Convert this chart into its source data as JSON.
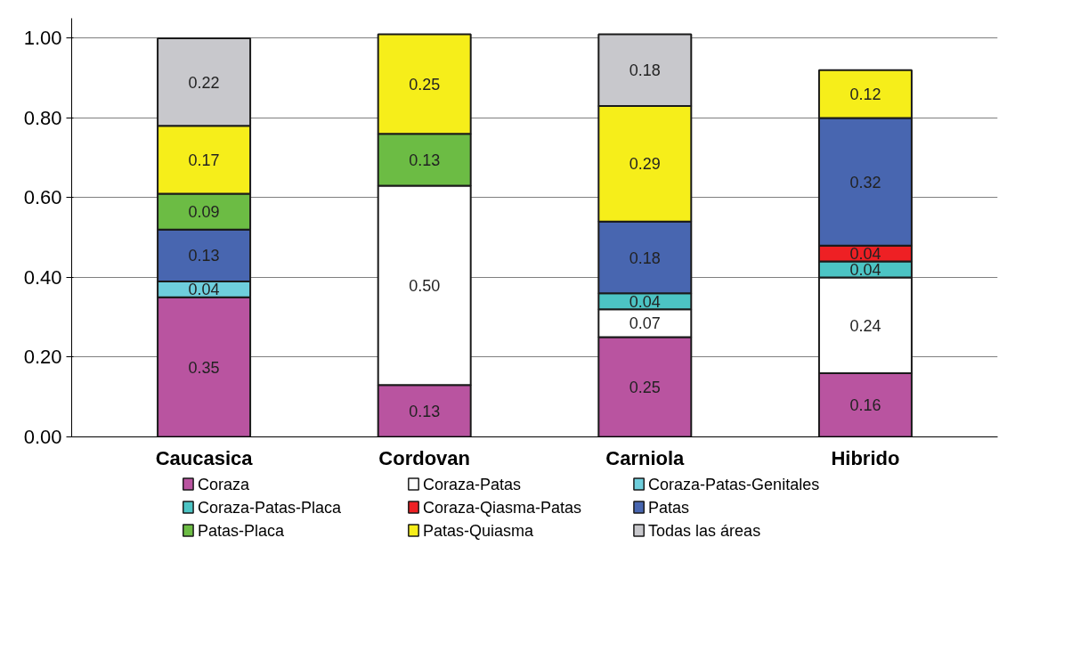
{
  "chart_data": {
    "type": "bar",
    "stacked": true,
    "grid": "y",
    "legend": "bottom",
    "categories": [
      "Caucasica",
      "Cordovan",
      "Carniola",
      "Hibrido"
    ],
    "ylim": [
      0,
      1.05
    ],
    "yticks": [
      {
        "value": 0,
        "label": "0.00"
      },
      {
        "value": 0.2,
        "label": "0.20"
      },
      {
        "value": 0.4,
        "label": "0.40"
      },
      {
        "value": 0.6,
        "label": "0.60"
      },
      {
        "value": 0.8,
        "label": "0.80"
      },
      {
        "value": 1.0,
        "label": "1.00"
      }
    ],
    "series": [
      {
        "name": "Coraza",
        "color": "#b954a0",
        "values": [
          0.35,
          0.13,
          0.25,
          0.16
        ],
        "value_labels": [
          "0.35",
          "0.13",
          "0.25",
          "0.16"
        ]
      },
      {
        "name": "Coraza-Patas",
        "color": "#ffffff",
        "values": [
          null,
          0.5,
          0.07,
          0.24
        ],
        "value_labels": [
          null,
          "0.50",
          "0.07",
          "0.24"
        ]
      },
      {
        "name": "Coraza-Patas-Genitales",
        "color": "#6ecedc",
        "values": [
          0.04,
          null,
          null,
          null
        ],
        "value_labels": [
          "0.04",
          null,
          null,
          null
        ]
      },
      {
        "name": "Coraza-Patas-Placa",
        "color": "#4cc4c4",
        "values": [
          null,
          null,
          0.04,
          0.04
        ],
        "value_labels": [
          null,
          null,
          "0.04",
          "0.04"
        ]
      },
      {
        "name": "Coraza-Qiasma-Patas",
        "color": "#ee2024",
        "values": [
          null,
          null,
          null,
          0.04
        ],
        "value_labels": [
          null,
          null,
          null,
          "0.04"
        ]
      },
      {
        "name": "Patas",
        "color": "#4866b0",
        "values": [
          0.13,
          null,
          0.18,
          0.32
        ],
        "value_labels": [
          "0.13",
          null,
          "0.18",
          "0.32"
        ]
      },
      {
        "name": "Patas-Placa",
        "color": "#6cbc44",
        "values": [
          0.09,
          0.13,
          null,
          null
        ],
        "value_labels": [
          "0.09",
          "0.13",
          null,
          null
        ]
      },
      {
        "name": "Patas-Quiasma",
        "color": "#f6ee1a",
        "values": [
          0.17,
          0.25,
          0.29,
          0.12
        ],
        "value_labels": [
          "0.17",
          "0.25",
          "0.29",
          "0.12"
        ]
      },
      {
        "name": "Todas las áreas",
        "color": "#c8c8cc",
        "values": [
          0.22,
          null,
          0.18,
          null
        ],
        "value_labels": [
          "0.22",
          null,
          "0.18",
          null
        ]
      }
    ]
  }
}
